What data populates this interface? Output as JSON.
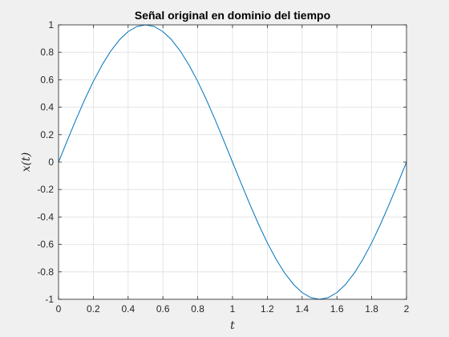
{
  "chart_data": {
    "type": "line",
    "title": "Señal original en dominio del tiempo",
    "xlabel": "t",
    "ylabel": "x(t)",
    "xlim": [
      0,
      2
    ],
    "ylim": [
      -1,
      1
    ],
    "grid": true,
    "legend": "none",
    "x_ticks": [
      0,
      0.2,
      0.4,
      0.6,
      0.8,
      1,
      1.2,
      1.4,
      1.6,
      1.8,
      2
    ],
    "x_tick_labels": [
      "0",
      "0.2",
      "0.4",
      "0.6",
      "0.8",
      "1",
      "1.2",
      "1.4",
      "1.6",
      "1.8",
      "2"
    ],
    "y_ticks": [
      -1,
      -0.8,
      -0.6,
      -0.4,
      -0.2,
      0,
      0.2,
      0.4,
      0.6,
      0.8,
      1
    ],
    "y_tick_labels": [
      "-1",
      "-0.8",
      "-0.6",
      "-0.4",
      "-0.2",
      "0",
      "0.2",
      "0.4",
      "0.6",
      "0.8",
      "1"
    ],
    "series": [
      {
        "color": "#0072bd",
        "x": [
          0,
          0.05,
          0.1,
          0.15,
          0.2,
          0.25,
          0.3,
          0.35,
          0.4,
          0.45,
          0.5,
          0.55,
          0.6,
          0.65,
          0.7,
          0.75,
          0.8,
          0.85,
          0.9,
          0.95,
          1,
          1.05,
          1.1,
          1.15,
          1.2,
          1.25,
          1.3,
          1.35,
          1.4,
          1.45,
          1.5,
          1.55,
          1.6,
          1.65,
          1.7,
          1.75,
          1.8,
          1.85,
          1.9,
          1.95,
          2
        ],
        "y": [
          0,
          0.156,
          0.309,
          0.454,
          0.588,
          0.707,
          0.809,
          0.891,
          0.951,
          0.988,
          1,
          0.988,
          0.951,
          0.891,
          0.809,
          0.707,
          0.588,
          0.454,
          0.309,
          0.156,
          0,
          -0.156,
          -0.309,
          -0.454,
          -0.588,
          -0.707,
          -0.809,
          -0.891,
          -0.951,
          -0.988,
          -1,
          -0.988,
          -0.951,
          -0.891,
          -0.809,
          -0.707,
          -0.588,
          -0.454,
          -0.309,
          -0.156,
          0
        ]
      }
    ]
  }
}
